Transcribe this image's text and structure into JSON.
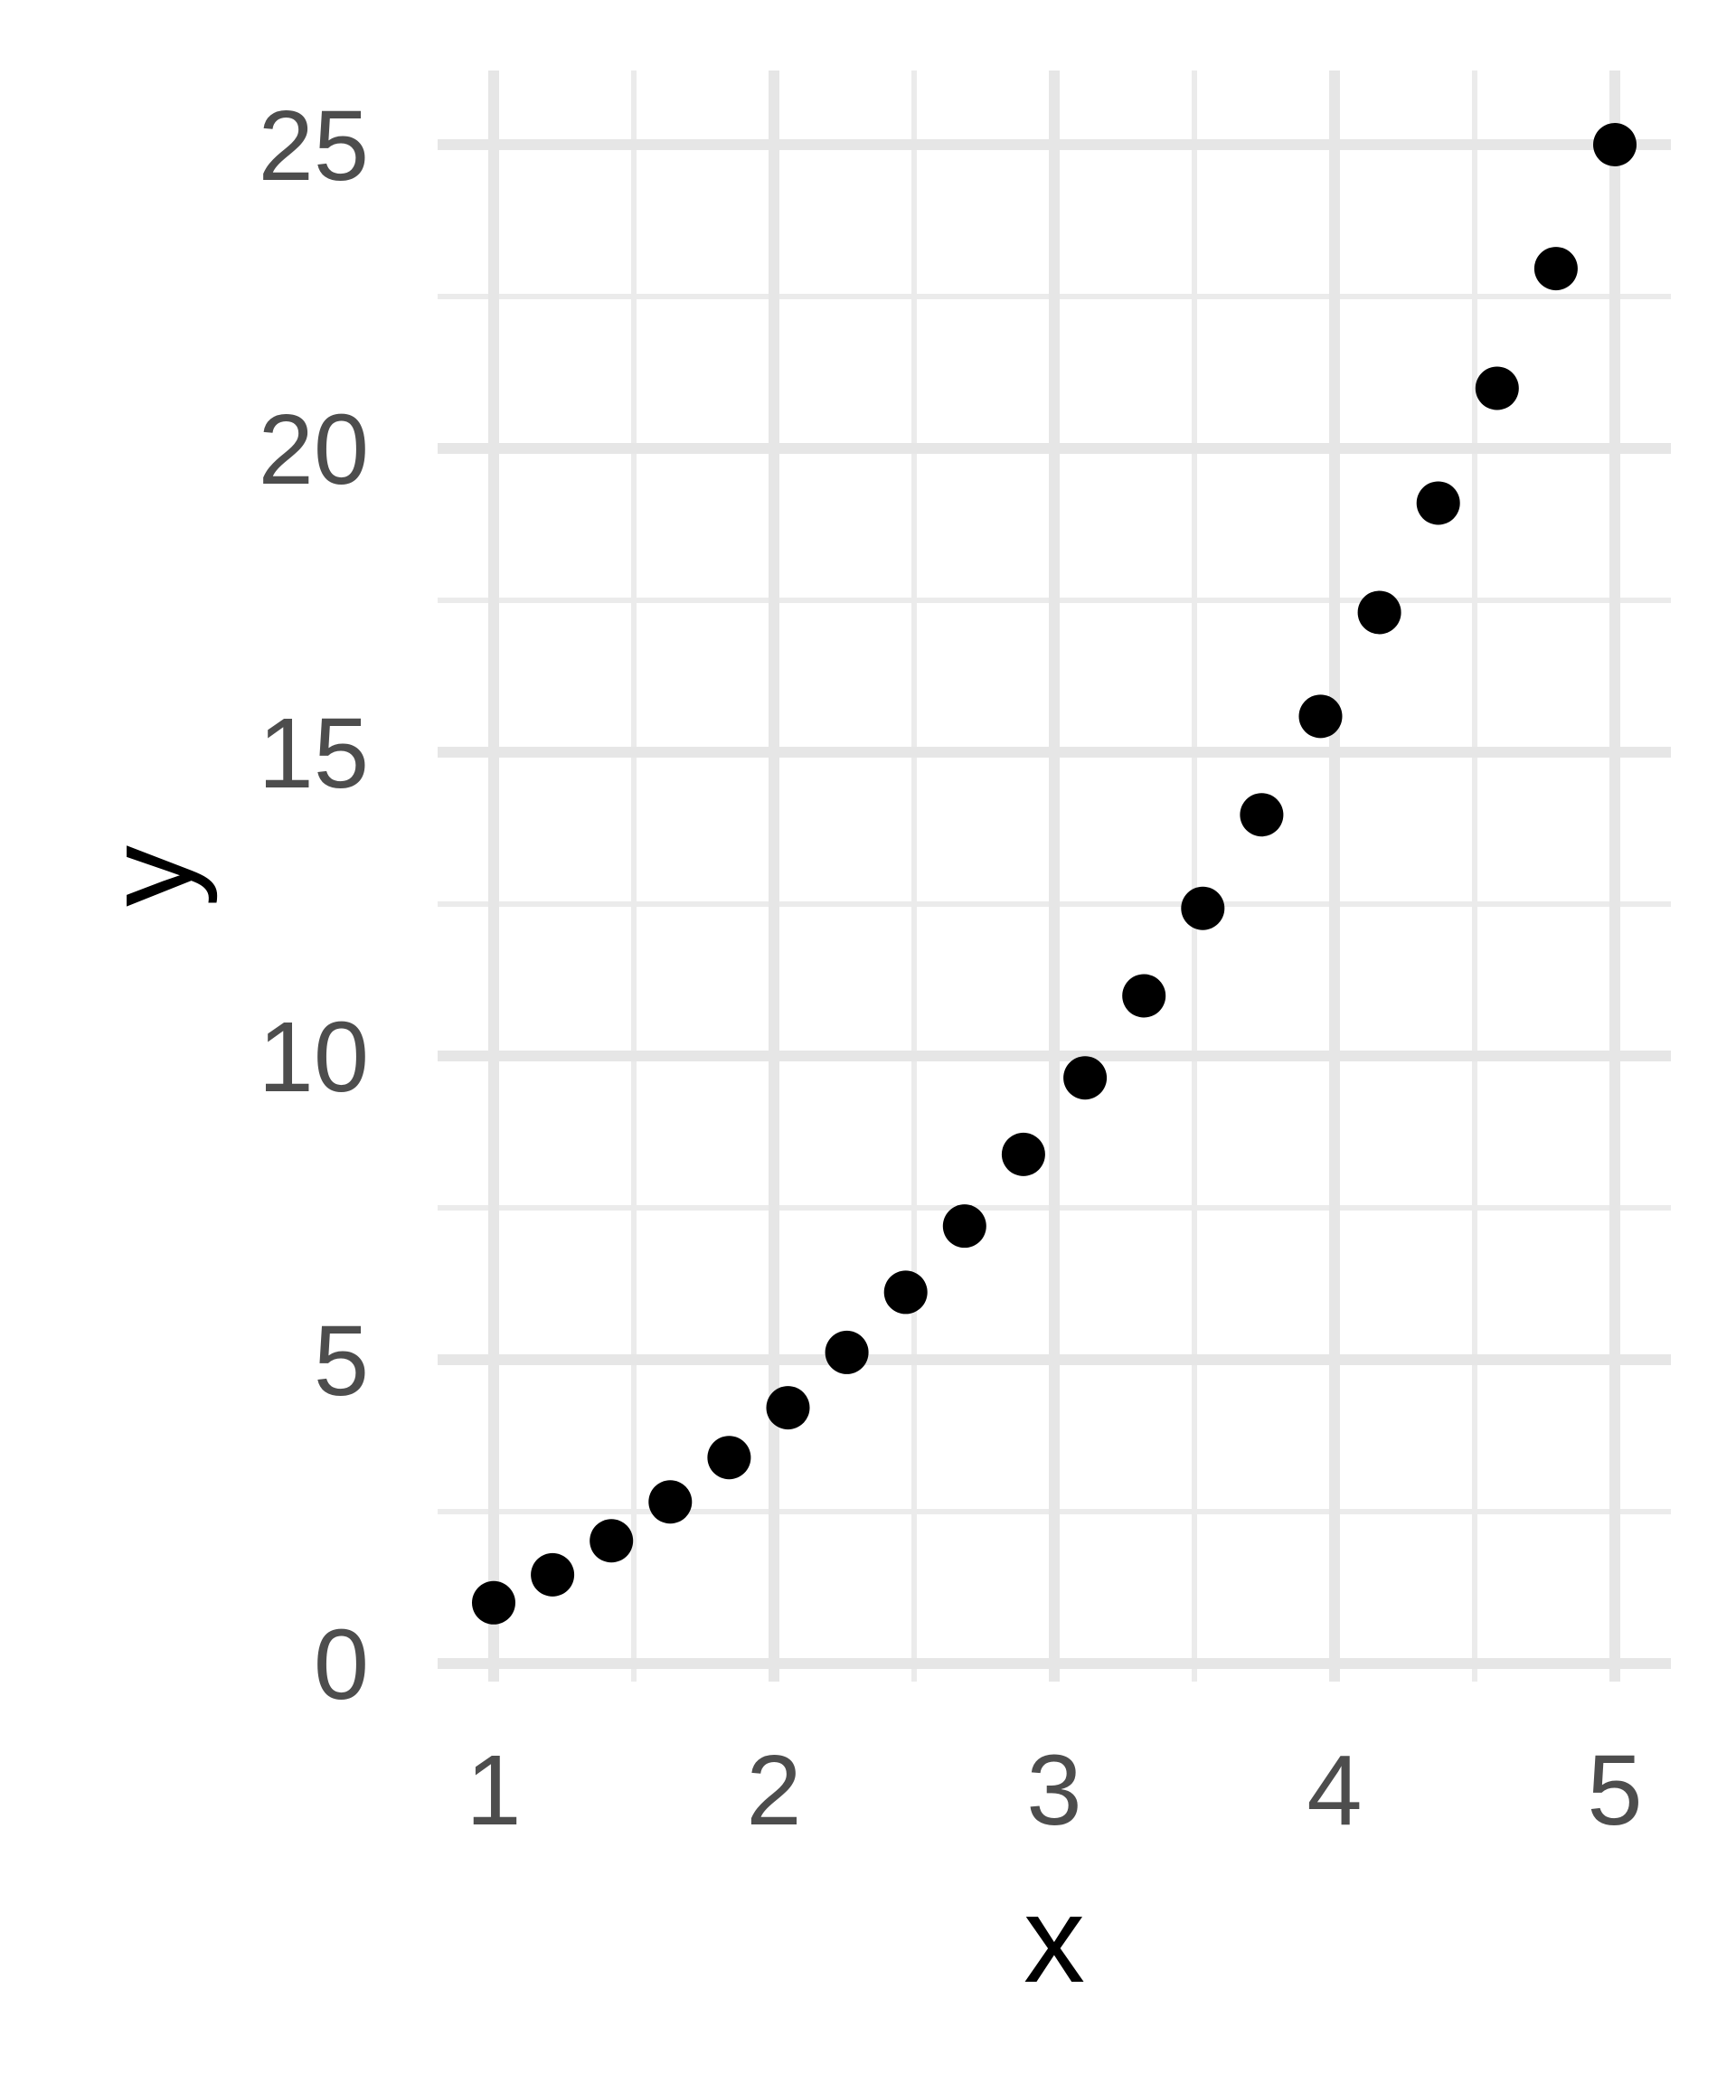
{
  "chart_data": {
    "type": "scatter",
    "xlabel": "x",
    "ylabel": "y",
    "xlim": [
      1,
      5
    ],
    "ylim": [
      0,
      25
    ],
    "x_ticks": [
      1,
      2,
      3,
      4,
      5
    ],
    "y_ticks": [
      0,
      5,
      10,
      15,
      20,
      25
    ],
    "x_minor_ticks": [
      1.5,
      2.5,
      3.5,
      4.5
    ],
    "y_minor_ticks": [
      2.5,
      7.5,
      12.5,
      17.5,
      22.5
    ],
    "grid": true,
    "points": [
      {
        "x": 1.0,
        "y": 1.0
      },
      {
        "x": 1.21,
        "y": 1.46
      },
      {
        "x": 1.42,
        "y": 2.02
      },
      {
        "x": 1.63,
        "y": 2.66
      },
      {
        "x": 1.84,
        "y": 3.39
      },
      {
        "x": 2.05,
        "y": 4.21
      },
      {
        "x": 2.26,
        "y": 5.12
      },
      {
        "x": 2.47,
        "y": 6.11
      },
      {
        "x": 2.68,
        "y": 7.2
      },
      {
        "x": 2.89,
        "y": 8.38
      },
      {
        "x": 3.11,
        "y": 9.64
      },
      {
        "x": 3.32,
        "y": 10.99
      },
      {
        "x": 3.53,
        "y": 12.43
      },
      {
        "x": 3.74,
        "y": 13.97
      },
      {
        "x": 3.95,
        "y": 15.59
      },
      {
        "x": 4.16,
        "y": 17.3
      },
      {
        "x": 4.37,
        "y": 19.1
      },
      {
        "x": 4.58,
        "y": 20.99
      },
      {
        "x": 4.79,
        "y": 22.96
      },
      {
        "x": 5.0,
        "y": 25.0
      }
    ]
  },
  "colors": {
    "background": "#ffffff",
    "grid_major": "#e6e6e6",
    "grid_minor": "#ebebeb",
    "tick_label": "#4d4d4d",
    "axis_title": "#000000",
    "point": "#000000"
  }
}
